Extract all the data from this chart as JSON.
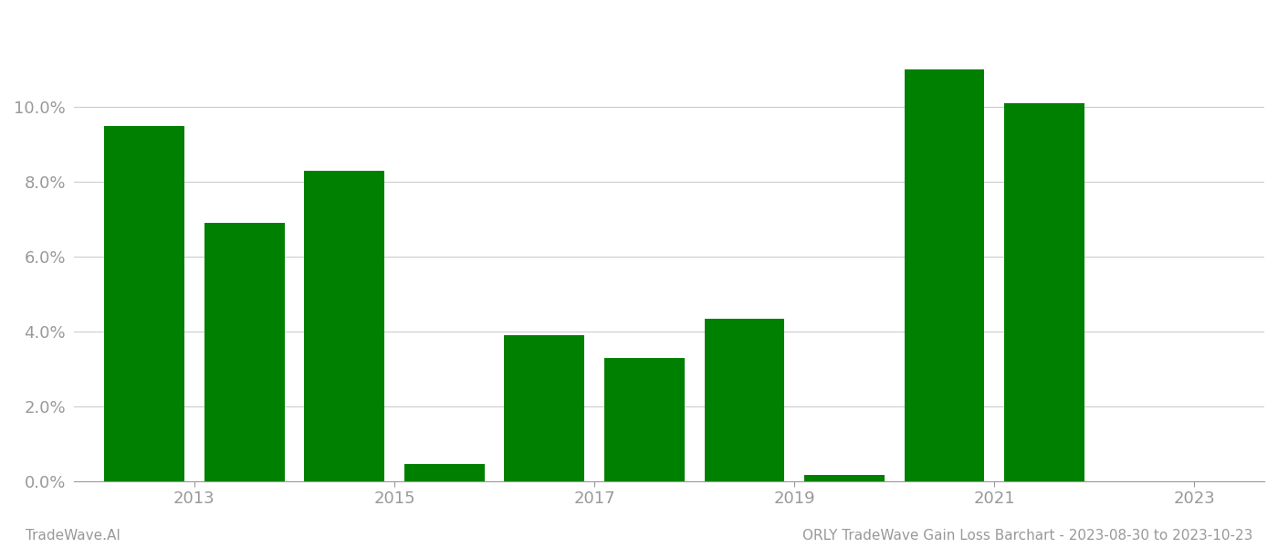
{
  "years": [
    2013,
    2014,
    2015,
    2016,
    2017,
    2018,
    2019,
    2020,
    2021,
    2022,
    2023
  ],
  "values": [
    0.095,
    0.069,
    0.083,
    0.0045,
    0.039,
    0.033,
    0.0435,
    0.0015,
    0.11,
    0.101,
    null
  ],
  "bar_color": "#008000",
  "background_color": "#ffffff",
  "grid_color": "#cccccc",
  "axis_color": "#999999",
  "tick_label_color": "#999999",
  "ylim": [
    0,
    0.125
  ],
  "yticks": [
    0.0,
    0.02,
    0.04,
    0.06,
    0.08,
    0.1
  ],
  "xtick_positions": [
    2013.5,
    2015.5,
    2017.5,
    2019.5,
    2021.5,
    2023.5
  ],
  "xtick_labels": [
    "2013",
    "2015",
    "2017",
    "2019",
    "2021",
    "2023"
  ],
  "title": "ORLY TradeWave Gain Loss Barchart - 2023-08-30 to 2023-10-23",
  "watermark_left": "TradeWave.AI",
  "bar_width": 0.8,
  "title_fontsize": 11,
  "tick_fontsize": 13,
  "watermark_fontsize": 11
}
